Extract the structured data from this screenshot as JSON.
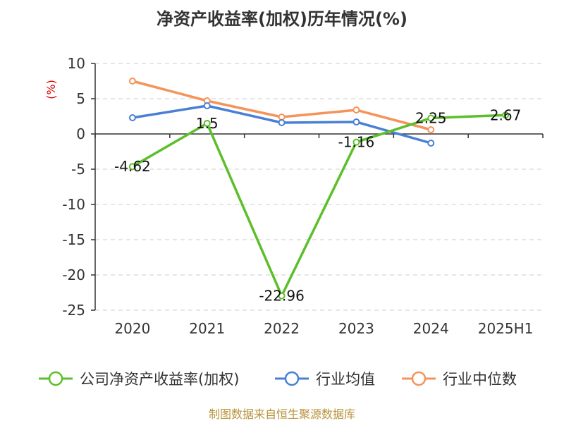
{
  "chart_data": {
    "type": "line",
    "title": "净资产收益率(加权)历年情况(%)",
    "ylabel": "(%)",
    "xlabel": "",
    "categories": [
      "2020",
      "2021",
      "2022",
      "2023",
      "2024",
      "2025H1"
    ],
    "ylim": [
      -25,
      10
    ],
    "yticks": [
      10,
      5,
      0,
      -5,
      -10,
      -15,
      -20,
      -25
    ],
    "grid": true,
    "legend_position": "bottom",
    "series": [
      {
        "name": "公司净资产收益率(加权)",
        "color": "#5cbf2a",
        "values": [
          -4.62,
          1.5,
          -22.96,
          -1.16,
          2.25,
          2.67
        ],
        "labels": [
          "-4.62",
          "1.5",
          "-22.96",
          "-1.16",
          "2.25",
          "2.67"
        ]
      },
      {
        "name": "行业均值",
        "color": "#4a7fd6",
        "values": [
          2.3,
          4.0,
          1.6,
          1.7,
          -1.3,
          null
        ]
      },
      {
        "name": "行业中位数",
        "color": "#f5935a",
        "values": [
          7.5,
          4.7,
          2.4,
          3.4,
          0.6,
          null
        ]
      }
    ],
    "source": "制图数据来自恒生聚源数据库"
  }
}
